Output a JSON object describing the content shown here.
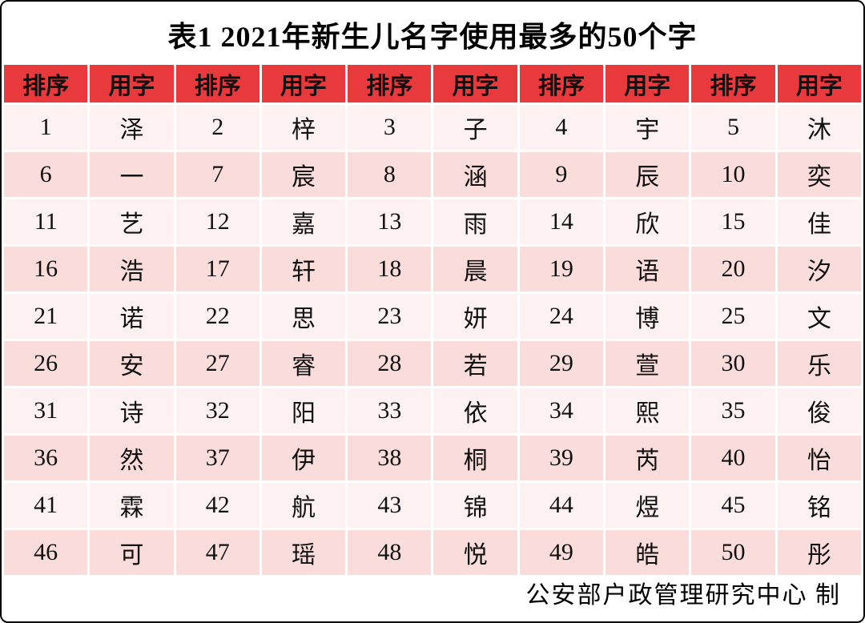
{
  "title": "表1  2021年新生儿名字使用最多的50个字",
  "footer": {
    "credit": "公安部户政管理研究中心 制"
  },
  "colors": {
    "header_red": "#e8393d",
    "row_light_pink": "#fdf2f1",
    "row_dark_pink": "#fadcdb",
    "frame_border": "#000000",
    "text": "#111111"
  },
  "table": {
    "header_labels": [
      "排序",
      "用字",
      "排序",
      "用字",
      "排序",
      "用字",
      "排序",
      "用字",
      "排序",
      "用字"
    ],
    "rows": [
      [
        "1",
        "泽",
        "2",
        "梓",
        "3",
        "子",
        "4",
        "宇",
        "5",
        "沐"
      ],
      [
        "6",
        "一",
        "7",
        "宸",
        "8",
        "涵",
        "9",
        "辰",
        "10",
        "奕"
      ],
      [
        "11",
        "艺",
        "12",
        "嘉",
        "13",
        "雨",
        "14",
        "欣",
        "15",
        "佳"
      ],
      [
        "16",
        "浩",
        "17",
        "轩",
        "18",
        "晨",
        "19",
        "语",
        "20",
        "汐"
      ],
      [
        "21",
        "诺",
        "22",
        "思",
        "23",
        "妍",
        "24",
        "博",
        "25",
        "文"
      ],
      [
        "26",
        "安",
        "27",
        "睿",
        "28",
        "若",
        "29",
        "萱",
        "30",
        "乐"
      ],
      [
        "31",
        "诗",
        "32",
        "阳",
        "33",
        "依",
        "34",
        "熙",
        "35",
        "俊"
      ],
      [
        "36",
        "然",
        "37",
        "伊",
        "38",
        "桐",
        "39",
        "芮",
        "40",
        "怡"
      ],
      [
        "41",
        "霖",
        "42",
        "航",
        "43",
        "锦",
        "44",
        "煜",
        "45",
        "铭"
      ],
      [
        "46",
        "可",
        "47",
        "瑶",
        "48",
        "悦",
        "49",
        "皓",
        "50",
        "彤"
      ]
    ]
  },
  "chart_data": {
    "type": "table",
    "title": "表1  2021年新生儿名字使用最多的50个字",
    "columns": [
      "排序",
      "用字"
    ],
    "ranked_characters": [
      {
        "rank": 1,
        "char": "泽"
      },
      {
        "rank": 2,
        "char": "梓"
      },
      {
        "rank": 3,
        "char": "子"
      },
      {
        "rank": 4,
        "char": "宇"
      },
      {
        "rank": 5,
        "char": "沐"
      },
      {
        "rank": 6,
        "char": "一"
      },
      {
        "rank": 7,
        "char": "宸"
      },
      {
        "rank": 8,
        "char": "涵"
      },
      {
        "rank": 9,
        "char": "辰"
      },
      {
        "rank": 10,
        "char": "奕"
      },
      {
        "rank": 11,
        "char": "艺"
      },
      {
        "rank": 12,
        "char": "嘉"
      },
      {
        "rank": 13,
        "char": "雨"
      },
      {
        "rank": 14,
        "char": "欣"
      },
      {
        "rank": 15,
        "char": "佳"
      },
      {
        "rank": 16,
        "char": "浩"
      },
      {
        "rank": 17,
        "char": "轩"
      },
      {
        "rank": 18,
        "char": "晨"
      },
      {
        "rank": 19,
        "char": "语"
      },
      {
        "rank": 20,
        "char": "汐"
      },
      {
        "rank": 21,
        "char": "诺"
      },
      {
        "rank": 22,
        "char": "思"
      },
      {
        "rank": 23,
        "char": "妍"
      },
      {
        "rank": 24,
        "char": "博"
      },
      {
        "rank": 25,
        "char": "文"
      },
      {
        "rank": 26,
        "char": "安"
      },
      {
        "rank": 27,
        "char": "睿"
      },
      {
        "rank": 28,
        "char": "若"
      },
      {
        "rank": 29,
        "char": "萱"
      },
      {
        "rank": 30,
        "char": "乐"
      },
      {
        "rank": 31,
        "char": "诗"
      },
      {
        "rank": 32,
        "char": "阳"
      },
      {
        "rank": 33,
        "char": "依"
      },
      {
        "rank": 34,
        "char": "熙"
      },
      {
        "rank": 35,
        "char": "俊"
      },
      {
        "rank": 36,
        "char": "然"
      },
      {
        "rank": 37,
        "char": "伊"
      },
      {
        "rank": 38,
        "char": "桐"
      },
      {
        "rank": 39,
        "char": "芮"
      },
      {
        "rank": 40,
        "char": "怡"
      },
      {
        "rank": 41,
        "char": "霖"
      },
      {
        "rank": 42,
        "char": "航"
      },
      {
        "rank": 43,
        "char": "锦"
      },
      {
        "rank": 44,
        "char": "煜"
      },
      {
        "rank": 45,
        "char": "铭"
      },
      {
        "rank": 46,
        "char": "可"
      },
      {
        "rank": 47,
        "char": "瑶"
      },
      {
        "rank": 48,
        "char": "悦"
      },
      {
        "rank": 49,
        "char": "皓"
      },
      {
        "rank": 50,
        "char": "彤"
      }
    ],
    "source_note": "公安部户政管理研究中心 制"
  }
}
